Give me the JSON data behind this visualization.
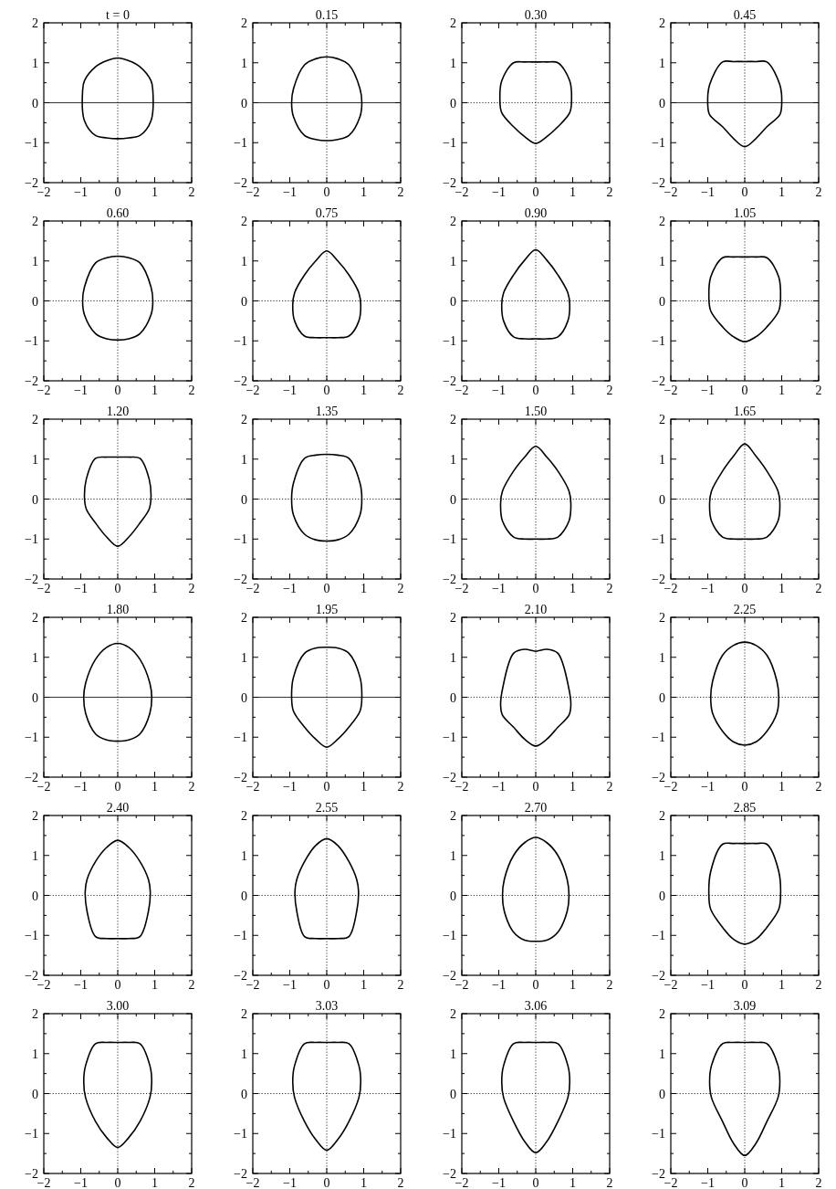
{
  "chart_data": [
    {
      "type": "line",
      "title": "t = 0",
      "xlim": [
        -2,
        2
      ],
      "ylim": [
        -2,
        2
      ],
      "xticks": [
        {
          "value": -2,
          "label": "−2"
        },
        {
          "value": -1.5,
          "label": null
        },
        {
          "value": -1,
          "label": "−1"
        },
        {
          "value": -0.5,
          "label": null
        },
        0,
        {
          "value": 0.5,
          "label": null
        },
        1,
        {
          "value": 1.5,
          "label": null
        },
        2
      ],
      "yticks": [
        {
          "value": -2,
          "label": "−2"
        },
        {
          "value": -1.5,
          "label": null
        },
        {
          "value": -1,
          "label": "−1"
        },
        {
          "value": -0.5,
          "label": null
        },
        0,
        {
          "value": 0.5,
          "label": null
        },
        1,
        {
          "value": 1.5,
          "label": null
        },
        2
      ],
      "ref_lines": [
        {
          "axis": "x",
          "value": 0,
          "line_style": "dotted"
        },
        {
          "axis": "y",
          "value": 0,
          "line_style": "solid"
        }
      ]
    },
    {
      "type": "line",
      "title": "0.15",
      "xlim": [
        -2,
        2
      ],
      "ylim": [
        -2,
        2
      ],
      "xticks": [
        {
          "value": -2,
          "label": "−2"
        },
        {
          "value": -1.5,
          "label": null
        },
        {
          "value": -1,
          "label": "−1"
        },
        {
          "value": -0.5,
          "label": null
        },
        0,
        {
          "value": 0.5,
          "label": null
        },
        1,
        {
          "value": 1.5,
          "label": null
        },
        2
      ],
      "yticks": [
        {
          "value": -2,
          "label": "−2"
        },
        {
          "value": -1.5,
          "label": null
        },
        {
          "value": -1,
          "label": "−1"
        },
        {
          "value": -0.5,
          "label": null
        },
        0,
        {
          "value": 0.5,
          "label": null
        },
        1,
        {
          "value": 1.5,
          "label": null
        },
        2
      ],
      "ref_lines": [
        {
          "axis": "x",
          "value": 0,
          "line_style": "dotted"
        },
        {
          "axis": "y",
          "value": 0,
          "line_style": "solid"
        }
      ]
    },
    {
      "type": "line",
      "title": "0.30",
      "xlim": [
        -2,
        2
      ],
      "ylim": [
        -2,
        2
      ],
      "xticks": [
        {
          "value": -2,
          "label": "−2"
        },
        {
          "value": -1.5,
          "label": null
        },
        {
          "value": -1,
          "label": "−1"
        },
        {
          "value": -0.5,
          "label": null
        },
        0,
        {
          "value": 0.5,
          "label": null
        },
        1,
        {
          "value": 1.5,
          "label": null
        },
        2
      ],
      "yticks": [
        {
          "value": -2,
          "label": "−2"
        },
        {
          "value": -1.5,
          "label": null
        },
        {
          "value": -1,
          "label": "−1"
        },
        {
          "value": -0.5,
          "label": null
        },
        0,
        {
          "value": 0.5,
          "label": null
        },
        1,
        {
          "value": 1.5,
          "label": null
        },
        2
      ],
      "ref_lines": [
        {
          "axis": "x",
          "value": 0,
          "line_style": "dotted"
        },
        {
          "axis": "y",
          "value": 0,
          "line_style": "dotted"
        }
      ]
    },
    {
      "type": "line",
      "title": "0.45",
      "xlim": [
        -2,
        2
      ],
      "ylim": [
        -2,
        2
      ],
      "xticks": [
        {
          "value": -2,
          "label": "−2"
        },
        {
          "value": -1.5,
          "label": null
        },
        {
          "value": -1,
          "label": "−1"
        },
        {
          "value": -0.5,
          "label": null
        },
        0,
        {
          "value": 0.5,
          "label": null
        },
        1,
        {
          "value": 1.5,
          "label": null
        },
        2
      ],
      "yticks": [
        {
          "value": -2,
          "label": "−2"
        },
        {
          "value": -1.5,
          "label": null
        },
        {
          "value": -1,
          "label": "−1"
        },
        {
          "value": -0.5,
          "label": null
        },
        0,
        {
          "value": 0.5,
          "label": null
        },
        1,
        {
          "value": 1.5,
          "label": null
        },
        2
      ],
      "ref_lines": [
        {
          "axis": "x",
          "value": 0,
          "line_style": "dotted"
        },
        {
          "axis": "y",
          "value": 0,
          "line_style": "solid"
        }
      ]
    },
    {
      "type": "line",
      "title": "0.60",
      "xlim": [
        -2,
        2
      ],
      "ylim": [
        -2,
        2
      ],
      "xticks": [
        {
          "value": -2,
          "label": "−2"
        },
        {
          "value": -1.5,
          "label": null
        },
        {
          "value": -1,
          "label": "−1"
        },
        {
          "value": -0.5,
          "label": null
        },
        0,
        {
          "value": 0.5,
          "label": null
        },
        1,
        {
          "value": 1.5,
          "label": null
        },
        2
      ],
      "yticks": [
        {
          "value": -2,
          "label": "−2"
        },
        {
          "value": -1.5,
          "label": null
        },
        {
          "value": -1,
          "label": "−1"
        },
        {
          "value": -0.5,
          "label": null
        },
        0,
        {
          "value": 0.5,
          "label": null
        },
        1,
        {
          "value": 1.5,
          "label": null
        },
        2
      ],
      "ref_lines": [
        {
          "axis": "x",
          "value": 0,
          "line_style": "dotted"
        },
        {
          "axis": "y",
          "value": 0,
          "line_style": "dotted"
        }
      ]
    },
    {
      "type": "line",
      "title": "0.75",
      "xlim": [
        -2,
        2
      ],
      "ylim": [
        -2,
        2
      ],
      "xticks": [
        {
          "value": -2,
          "label": "−2"
        },
        {
          "value": -1.5,
          "label": null
        },
        {
          "value": -1,
          "label": "−1"
        },
        {
          "value": -0.5,
          "label": null
        },
        0,
        {
          "value": 0.5,
          "label": null
        },
        1,
        {
          "value": 1.5,
          "label": null
        },
        2
      ],
      "yticks": [
        {
          "value": -2,
          "label": "−2"
        },
        {
          "value": -1.5,
          "label": null
        },
        {
          "value": -1,
          "label": "−1"
        },
        {
          "value": -0.5,
          "label": null
        },
        0,
        {
          "value": 0.5,
          "label": null
        },
        1,
        {
          "value": 1.5,
          "label": null
        },
        2
      ],
      "ref_lines": [
        {
          "axis": "x",
          "value": 0,
          "line_style": "dotted"
        },
        {
          "axis": "y",
          "value": 0,
          "line_style": "dotted"
        }
      ]
    },
    {
      "type": "line",
      "title": "0.90",
      "xlim": [
        -2,
        2
      ],
      "ylim": [
        -2,
        2
      ],
      "xticks": [
        {
          "value": -2,
          "label": "−2"
        },
        {
          "value": -1.5,
          "label": null
        },
        {
          "value": -1,
          "label": "−1"
        },
        {
          "value": -0.5,
          "label": null
        },
        0,
        {
          "value": 0.5,
          "label": null
        },
        1,
        {
          "value": 1.5,
          "label": null
        },
        2
      ],
      "yticks": [
        {
          "value": -2,
          "label": "−2"
        },
        {
          "value": -1.5,
          "label": null
        },
        {
          "value": -1,
          "label": "−1"
        },
        {
          "value": -0.5,
          "label": null
        },
        0,
        {
          "value": 0.5,
          "label": null
        },
        1,
        {
          "value": 1.5,
          "label": null
        },
        2
      ],
      "ref_lines": [
        {
          "axis": "x",
          "value": 0,
          "line_style": "dotted"
        },
        {
          "axis": "y",
          "value": 0,
          "line_style": "dotted"
        }
      ]
    },
    {
      "type": "line",
      "title": "1.05",
      "xlim": [
        -2,
        2
      ],
      "ylim": [
        -2,
        2
      ],
      "xticks": [
        {
          "value": -2,
          "label": "−2"
        },
        {
          "value": -1.5,
          "label": null
        },
        {
          "value": -1,
          "label": "−1"
        },
        {
          "value": -0.5,
          "label": null
        },
        0,
        {
          "value": 0.5,
          "label": null
        },
        1,
        {
          "value": 1.5,
          "label": null
        },
        2
      ],
      "yticks": [
        {
          "value": -2,
          "label": "−2"
        },
        {
          "value": -1.5,
          "label": null
        },
        {
          "value": -1,
          "label": "−1"
        },
        {
          "value": -0.5,
          "label": null
        },
        0,
        {
          "value": 0.5,
          "label": null
        },
        1,
        {
          "value": 1.5,
          "label": null
        },
        2
      ],
      "ref_lines": [
        {
          "axis": "x",
          "value": 0,
          "line_style": "dotted"
        },
        {
          "axis": "y",
          "value": 0,
          "line_style": "dotted"
        }
      ]
    },
    {
      "type": "line",
      "title": "1.20",
      "xlim": [
        -2,
        2
      ],
      "ylim": [
        -2,
        2
      ],
      "xticks": [
        {
          "value": -2,
          "label": "−2"
        },
        {
          "value": -1.5,
          "label": null
        },
        {
          "value": -1,
          "label": "−1"
        },
        {
          "value": -0.5,
          "label": null
        },
        0,
        {
          "value": 0.5,
          "label": null
        },
        1,
        {
          "value": 1.5,
          "label": null
        },
        2
      ],
      "yticks": [
        {
          "value": -2,
          "label": "−2"
        },
        {
          "value": -1.5,
          "label": null
        },
        {
          "value": -1,
          "label": "−1"
        },
        {
          "value": -0.5,
          "label": null
        },
        0,
        {
          "value": 0.5,
          "label": null
        },
        1,
        {
          "value": 1.5,
          "label": null
        },
        2
      ],
      "ref_lines": [
        {
          "axis": "x",
          "value": 0,
          "line_style": "dotted"
        },
        {
          "axis": "y",
          "value": 0,
          "line_style": "dotted"
        }
      ]
    },
    {
      "type": "line",
      "title": "1.35",
      "xlim": [
        -2,
        2
      ],
      "ylim": [
        -2,
        2
      ],
      "xticks": [
        {
          "value": -2,
          "label": "−2"
        },
        {
          "value": -1.5,
          "label": null
        },
        {
          "value": -1,
          "label": "−1"
        },
        {
          "value": -0.5,
          "label": null
        },
        0,
        {
          "value": 0.5,
          "label": null
        },
        1,
        {
          "value": 1.5,
          "label": null
        },
        2
      ],
      "yticks": [
        {
          "value": -2,
          "label": "−2"
        },
        {
          "value": -1.5,
          "label": null
        },
        {
          "value": -1,
          "label": "−1"
        },
        {
          "value": -0.5,
          "label": null
        },
        0,
        {
          "value": 0.5,
          "label": null
        },
        1,
        {
          "value": 1.5,
          "label": null
        },
        2
      ],
      "ref_lines": [
        {
          "axis": "x",
          "value": 0,
          "line_style": "dotted"
        },
        {
          "axis": "y",
          "value": 0,
          "line_style": "dotted"
        }
      ]
    },
    {
      "type": "line",
      "title": "1.50",
      "xlim": [
        -2,
        2
      ],
      "ylim": [
        -2,
        2
      ],
      "xticks": [
        {
          "value": -2,
          "label": "−2"
        },
        {
          "value": -1.5,
          "label": null
        },
        {
          "value": -1,
          "label": "−1"
        },
        {
          "value": -0.5,
          "label": null
        },
        0,
        {
          "value": 0.5,
          "label": null
        },
        1,
        {
          "value": 1.5,
          "label": null
        },
        2
      ],
      "yticks": [
        {
          "value": -2,
          "label": "−2"
        },
        {
          "value": -1.5,
          "label": null
        },
        {
          "value": -1,
          "label": "−1"
        },
        {
          "value": -0.5,
          "label": null
        },
        0,
        {
          "value": 0.5,
          "label": null
        },
        1,
        {
          "value": 1.5,
          "label": null
        },
        2
      ],
      "ref_lines": [
        {
          "axis": "x",
          "value": 0,
          "line_style": "dotted"
        },
        {
          "axis": "y",
          "value": 0,
          "line_style": "dotted"
        }
      ]
    },
    {
      "type": "line",
      "title": "1.65",
      "xlim": [
        -2,
        2
      ],
      "ylim": [
        -2,
        2
      ],
      "xticks": [
        {
          "value": -2,
          "label": "−2"
        },
        {
          "value": -1.5,
          "label": null
        },
        {
          "value": -1,
          "label": "−1"
        },
        {
          "value": -0.5,
          "label": null
        },
        0,
        {
          "value": 0.5,
          "label": null
        },
        1,
        {
          "value": 1.5,
          "label": null
        },
        2
      ],
      "yticks": [
        {
          "value": -2,
          "label": "−2"
        },
        {
          "value": -1.5,
          "label": null
        },
        {
          "value": -1,
          "label": "−1"
        },
        {
          "value": -0.5,
          "label": null
        },
        0,
        {
          "value": 0.5,
          "label": null
        },
        1,
        {
          "value": 1.5,
          "label": null
        },
        2
      ],
      "ref_lines": [
        {
          "axis": "x",
          "value": 0,
          "line_style": "dotted"
        },
        {
          "axis": "y",
          "value": 0,
          "line_style": "dotted"
        }
      ]
    },
    {
      "type": "line",
      "title": "1.80",
      "xlim": [
        -2,
        2
      ],
      "ylim": [
        -2,
        2
      ],
      "xticks": [
        {
          "value": -2,
          "label": "−2"
        },
        {
          "value": -1.5,
          "label": null
        },
        {
          "value": -1,
          "label": "−1"
        },
        {
          "value": -0.5,
          "label": null
        },
        0,
        {
          "value": 0.5,
          "label": null
        },
        1,
        {
          "value": 1.5,
          "label": null
        },
        2
      ],
      "yticks": [
        {
          "value": -2,
          "label": "−2"
        },
        {
          "value": -1.5,
          "label": null
        },
        {
          "value": -1,
          "label": "−1"
        },
        {
          "value": -0.5,
          "label": null
        },
        0,
        {
          "value": 0.5,
          "label": null
        },
        1,
        {
          "value": 1.5,
          "label": null
        },
        2
      ],
      "ref_lines": [
        {
          "axis": "x",
          "value": 0,
          "line_style": "dotted"
        },
        {
          "axis": "y",
          "value": 0,
          "line_style": "solid"
        }
      ]
    },
    {
      "type": "line",
      "title": "1.95",
      "xlim": [
        -2,
        2
      ],
      "ylim": [
        -2,
        2
      ],
      "xticks": [
        {
          "value": -2,
          "label": "−2"
        },
        {
          "value": -1.5,
          "label": null
        },
        {
          "value": -1,
          "label": "−1"
        },
        {
          "value": -0.5,
          "label": null
        },
        0,
        {
          "value": 0.5,
          "label": null
        },
        1,
        {
          "value": 1.5,
          "label": null
        },
        2
      ],
      "yticks": [
        {
          "value": -2,
          "label": "−2"
        },
        {
          "value": -1.5,
          "label": null
        },
        {
          "value": -1,
          "label": "−1"
        },
        {
          "value": -0.5,
          "label": null
        },
        0,
        {
          "value": 0.5,
          "label": null
        },
        1,
        {
          "value": 1.5,
          "label": null
        },
        2
      ],
      "ref_lines": [
        {
          "axis": "x",
          "value": 0,
          "line_style": "dotted"
        },
        {
          "axis": "y",
          "value": 0,
          "line_style": "solid"
        }
      ]
    },
    {
      "type": "line",
      "title": "2.10",
      "xlim": [
        -2,
        2
      ],
      "ylim": [
        -2,
        2
      ],
      "xticks": [
        {
          "value": -2,
          "label": "−2"
        },
        {
          "value": -1.5,
          "label": null
        },
        {
          "value": -1,
          "label": "−1"
        },
        {
          "value": -0.5,
          "label": null
        },
        0,
        {
          "value": 0.5,
          "label": null
        },
        1,
        {
          "value": 1.5,
          "label": null
        },
        2
      ],
      "yticks": [
        {
          "value": -2,
          "label": "−2"
        },
        {
          "value": -1.5,
          "label": null
        },
        {
          "value": -1,
          "label": "−1"
        },
        {
          "value": -0.5,
          "label": null
        },
        0,
        {
          "value": 0.5,
          "label": null
        },
        1,
        {
          "value": 1.5,
          "label": null
        },
        2
      ],
      "ref_lines": [
        {
          "axis": "x",
          "value": 0,
          "line_style": "dotted"
        },
        {
          "axis": "y",
          "value": 0,
          "line_style": "dotted"
        }
      ]
    },
    {
      "type": "line",
      "title": "2.25",
      "xlim": [
        -2,
        2
      ],
      "ylim": [
        -2,
        2
      ],
      "xticks": [
        {
          "value": -2,
          "label": "−2"
        },
        {
          "value": -1.5,
          "label": null
        },
        {
          "value": -1,
          "label": "−1"
        },
        {
          "value": -0.5,
          "label": null
        },
        0,
        {
          "value": 0.5,
          "label": null
        },
        1,
        {
          "value": 1.5,
          "label": null
        },
        2
      ],
      "yticks": [
        {
          "value": -2,
          "label": "−2"
        },
        {
          "value": -1.5,
          "label": null
        },
        {
          "value": -1,
          "label": "−1"
        },
        {
          "value": -0.5,
          "label": null
        },
        0,
        {
          "value": 0.5,
          "label": null
        },
        1,
        {
          "value": 1.5,
          "label": null
        },
        2
      ],
      "ref_lines": [
        {
          "axis": "x",
          "value": 0,
          "line_style": "dotted"
        },
        {
          "axis": "y",
          "value": 0,
          "line_style": "dotted"
        }
      ]
    },
    {
      "type": "line",
      "title": "2.40",
      "xlim": [
        -2,
        2
      ],
      "ylim": [
        -2,
        2
      ],
      "xticks": [
        {
          "value": -2,
          "label": "−2"
        },
        {
          "value": -1.5,
          "label": null
        },
        {
          "value": -1,
          "label": "−1"
        },
        {
          "value": -0.5,
          "label": null
        },
        0,
        {
          "value": 0.5,
          "label": null
        },
        1,
        {
          "value": 1.5,
          "label": null
        },
        2
      ],
      "yticks": [
        {
          "value": -2,
          "label": "−2"
        },
        {
          "value": -1.5,
          "label": null
        },
        {
          "value": -1,
          "label": "−1"
        },
        {
          "value": -0.5,
          "label": null
        },
        0,
        {
          "value": 0.5,
          "label": null
        },
        1,
        {
          "value": 1.5,
          "label": null
        },
        2
      ],
      "ref_lines": [
        {
          "axis": "x",
          "value": 0,
          "line_style": "dotted"
        },
        {
          "axis": "y",
          "value": 0,
          "line_style": "dotted"
        }
      ]
    },
    {
      "type": "line",
      "title": "2.55",
      "xlim": [
        -2,
        2
      ],
      "ylim": [
        -2,
        2
      ],
      "xticks": [
        {
          "value": -2,
          "label": "−2"
        },
        {
          "value": -1.5,
          "label": null
        },
        {
          "value": -1,
          "label": "−1"
        },
        {
          "value": -0.5,
          "label": null
        },
        0,
        {
          "value": 0.5,
          "label": null
        },
        1,
        {
          "value": 1.5,
          "label": null
        },
        2
      ],
      "yticks": [
        {
          "value": -2,
          "label": "−2"
        },
        {
          "value": -1.5,
          "label": null
        },
        {
          "value": -1,
          "label": "−1"
        },
        {
          "value": -0.5,
          "label": null
        },
        0,
        {
          "value": 0.5,
          "label": null
        },
        1,
        {
          "value": 1.5,
          "label": null
        },
        2
      ],
      "ref_lines": [
        {
          "axis": "x",
          "value": 0,
          "line_style": "dotted"
        },
        {
          "axis": "y",
          "value": 0,
          "line_style": "dotted"
        }
      ]
    },
    {
      "type": "line",
      "title": "2.70",
      "xlim": [
        -2,
        2
      ],
      "ylim": [
        -2,
        2
      ],
      "xticks": [
        {
          "value": -2,
          "label": "−2"
        },
        {
          "value": -1.5,
          "label": null
        },
        {
          "value": -1,
          "label": "−1"
        },
        {
          "value": -0.5,
          "label": null
        },
        0,
        {
          "value": 0.5,
          "label": null
        },
        1,
        {
          "value": 1.5,
          "label": null
        },
        2
      ],
      "yticks": [
        {
          "value": -2,
          "label": "−2"
        },
        {
          "value": -1.5,
          "label": null
        },
        {
          "value": -1,
          "label": "−1"
        },
        {
          "value": -0.5,
          "label": null
        },
        0,
        {
          "value": 0.5,
          "label": null
        },
        1,
        {
          "value": 1.5,
          "label": null
        },
        2
      ],
      "ref_lines": [
        {
          "axis": "x",
          "value": 0,
          "line_style": "dotted"
        },
        {
          "axis": "y",
          "value": 0,
          "line_style": "dotted"
        }
      ]
    },
    {
      "type": "line",
      "title": "2.85",
      "xlim": [
        -2,
        2
      ],
      "ylim": [
        -2,
        2
      ],
      "xticks": [
        {
          "value": -2,
          "label": "−2"
        },
        {
          "value": -1.5,
          "label": null
        },
        {
          "value": -1,
          "label": "−1"
        },
        {
          "value": -0.5,
          "label": null
        },
        0,
        {
          "value": 0.5,
          "label": null
        },
        1,
        {
          "value": 1.5,
          "label": null
        },
        2
      ],
      "yticks": [
        {
          "value": -2,
          "label": "−2"
        },
        {
          "value": -1.5,
          "label": null
        },
        {
          "value": -1,
          "label": "−1"
        },
        {
          "value": -0.5,
          "label": null
        },
        0,
        {
          "value": 0.5,
          "label": null
        },
        1,
        {
          "value": 1.5,
          "label": null
        },
        2
      ],
      "ref_lines": [
        {
          "axis": "x",
          "value": 0,
          "line_style": "dotted"
        },
        {
          "axis": "y",
          "value": 0,
          "line_style": "dotted"
        }
      ]
    },
    {
      "type": "line",
      "title": "3.00",
      "xlim": [
        -2,
        2
      ],
      "ylim": [
        -2,
        2
      ],
      "xticks": [
        {
          "value": -2,
          "label": "−2"
        },
        {
          "value": -1.5,
          "label": null
        },
        {
          "value": -1,
          "label": "−1"
        },
        {
          "value": -0.5,
          "label": null
        },
        0,
        {
          "value": 0.5,
          "label": null
        },
        1,
        {
          "value": 1.5,
          "label": null
        },
        2
      ],
      "yticks": [
        {
          "value": -2,
          "label": "−2"
        },
        {
          "value": -1.5,
          "label": null
        },
        {
          "value": -1,
          "label": "−1"
        },
        {
          "value": -0.5,
          "label": null
        },
        0,
        {
          "value": 0.5,
          "label": null
        },
        1,
        {
          "value": 1.5,
          "label": null
        },
        2
      ],
      "ref_lines": [
        {
          "axis": "x",
          "value": 0,
          "line_style": "dotted"
        },
        {
          "axis": "y",
          "value": 0,
          "line_style": "dotted"
        }
      ]
    },
    {
      "type": "line",
      "title": "3.03",
      "xlim": [
        -2,
        2
      ],
      "ylim": [
        -2,
        2
      ],
      "xticks": [
        {
          "value": -2,
          "label": "−2"
        },
        {
          "value": -1.5,
          "label": null
        },
        {
          "value": -1,
          "label": "−1"
        },
        {
          "value": -0.5,
          "label": null
        },
        0,
        {
          "value": 0.5,
          "label": null
        },
        1,
        {
          "value": 1.5,
          "label": null
        },
        2
      ],
      "yticks": [
        {
          "value": -2,
          "label": "−2"
        },
        {
          "value": -1.5,
          "label": null
        },
        {
          "value": -1,
          "label": "−1"
        },
        {
          "value": -0.5,
          "label": null
        },
        0,
        {
          "value": 0.5,
          "label": null
        },
        1,
        {
          "value": 1.5,
          "label": null
        },
        2
      ],
      "ref_lines": [
        {
          "axis": "x",
          "value": 0,
          "line_style": "dotted"
        },
        {
          "axis": "y",
          "value": 0,
          "line_style": "dotted"
        }
      ]
    },
    {
      "type": "line",
      "title": "3.06",
      "xlim": [
        -2,
        2
      ],
      "ylim": [
        -2,
        2
      ],
      "xticks": [
        {
          "value": -2,
          "label": "−2"
        },
        {
          "value": -1.5,
          "label": null
        },
        {
          "value": -1,
          "label": "−1"
        },
        {
          "value": -0.5,
          "label": null
        },
        0,
        {
          "value": 0.5,
          "label": null
        },
        1,
        {
          "value": 1.5,
          "label": null
        },
        2
      ],
      "yticks": [
        {
          "value": -2,
          "label": "−2"
        },
        {
          "value": -1.5,
          "label": null
        },
        {
          "value": -1,
          "label": "−1"
        },
        {
          "value": -0.5,
          "label": null
        },
        0,
        {
          "value": 0.5,
          "label": null
        },
        1,
        {
          "value": 1.5,
          "label": null
        },
        2
      ],
      "ref_lines": [
        {
          "axis": "x",
          "value": 0,
          "line_style": "dotted"
        },
        {
          "axis": "y",
          "value": 0,
          "line_style": "dotted"
        }
      ]
    },
    {
      "type": "line",
      "title": "3.09",
      "xlim": [
        -2,
        2
      ],
      "ylim": [
        -2,
        2
      ],
      "xticks": [
        {
          "value": -2,
          "label": "−2"
        },
        {
          "value": -1.5,
          "label": null
        },
        {
          "value": -1,
          "label": "−1"
        },
        {
          "value": -0.5,
          "label": null
        },
        0,
        {
          "value": 0.5,
          "label": null
        },
        1,
        {
          "value": 1.5,
          "label": null
        },
        2
      ],
      "yticks": [
        {
          "value": -2,
          "label": "−2"
        },
        {
          "value": -1.5,
          "label": null
        },
        {
          "value": -1,
          "label": "−1"
        },
        {
          "value": -0.5,
          "label": null
        },
        0,
        {
          "value": 0.5,
          "label": null
        },
        1,
        {
          "value": 1.5,
          "label": null
        },
        2
      ],
      "ref_lines": [
        {
          "axis": "x",
          "value": 0,
          "line_style": "dotted"
        },
        {
          "axis": "y",
          "value": 0,
          "line_style": "dotted"
        }
      ]
    }
  ]
}
